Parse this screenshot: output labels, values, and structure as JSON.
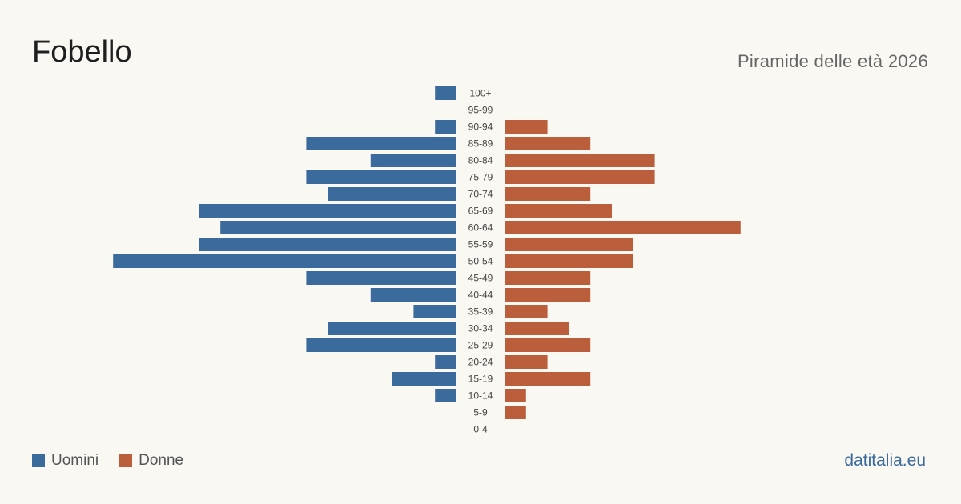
{
  "header": {
    "title": "Fobello",
    "subtitle": "Piramide delle età 2026"
  },
  "legend": {
    "men_label": "Uomini",
    "women_label": "Donne"
  },
  "brand": "datitalia.eu",
  "colors": {
    "men": "#3b6b9c",
    "women": "#bb5e3c"
  },
  "chart_data": {
    "type": "bar",
    "orientation": "horizontal-pyramid",
    "categories": [
      "100+",
      "95-99",
      "90-94",
      "85-89",
      "80-84",
      "75-79",
      "70-74",
      "65-69",
      "60-64",
      "55-59",
      "50-54",
      "45-49",
      "40-44",
      "35-39",
      "30-34",
      "25-29",
      "20-24",
      "15-19",
      "10-14",
      "5-9",
      "0-4"
    ],
    "series": [
      {
        "name": "Uomini",
        "side": "left",
        "values": [
          1,
          0,
          1,
          7,
          4,
          7,
          6,
          12,
          11,
          12,
          16,
          7,
          4,
          2,
          6,
          7,
          1,
          3,
          1,
          0,
          0
        ]
      },
      {
        "name": "Donne",
        "side": "right",
        "values": [
          0,
          0,
          2,
          4,
          7,
          7,
          4,
          5,
          11,
          6,
          6,
          4,
          4,
          2,
          3,
          4,
          2,
          4,
          1,
          1,
          0
        ]
      }
    ],
    "legend_position": "bottom-left",
    "grid": false
  }
}
